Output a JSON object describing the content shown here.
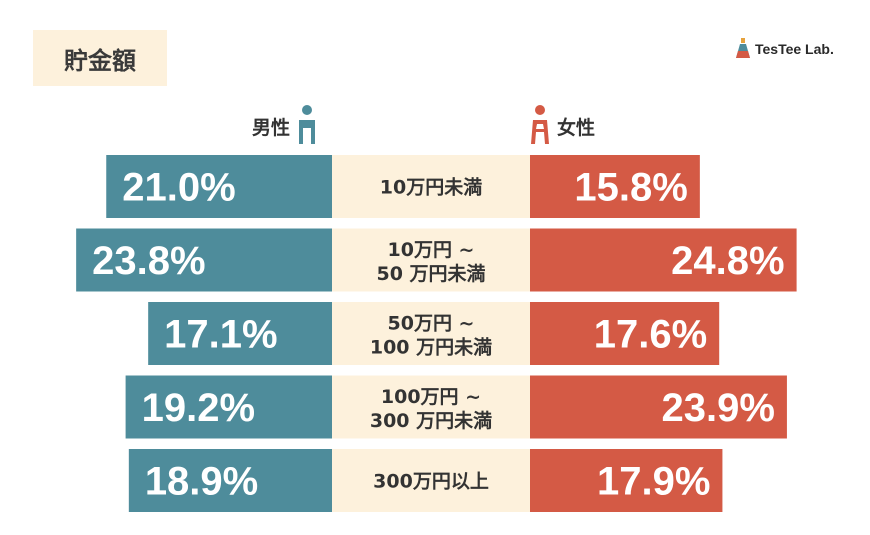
{
  "title": "貯金額",
  "logo": {
    "text": "TesTee Lab."
  },
  "legend": {
    "male": "男性",
    "female": "女性"
  },
  "colors": {
    "male": "#4e8c9b",
    "female": "#d45a45",
    "center": "#fdf1dc",
    "title_bg": "#fdf1dc"
  },
  "chart_data": {
    "type": "bar",
    "orientation": "horizontal-butterfly",
    "categories": [
      [
        "10万円未満"
      ],
      [
        "10万円 ~",
        "50 万円未満"
      ],
      [
        "50万円 ~",
        "100 万円未満"
      ],
      [
        "100万円 ~",
        "300 万円未満"
      ],
      [
        "300万円以上"
      ]
    ],
    "series": [
      {
        "name": "男性",
        "values": [
          21.0,
          23.8,
          17.1,
          19.2,
          18.9
        ],
        "labels": [
          "21.0%",
          "23.8%",
          "17.1%",
          "19.2%",
          "18.9%"
        ]
      },
      {
        "name": "女性",
        "values": [
          15.8,
          24.8,
          17.6,
          23.9,
          17.9
        ],
        "labels": [
          "15.8%",
          "24.8%",
          "17.6%",
          "23.9%",
          "17.9%"
        ]
      }
    ],
    "unit": "%"
  }
}
